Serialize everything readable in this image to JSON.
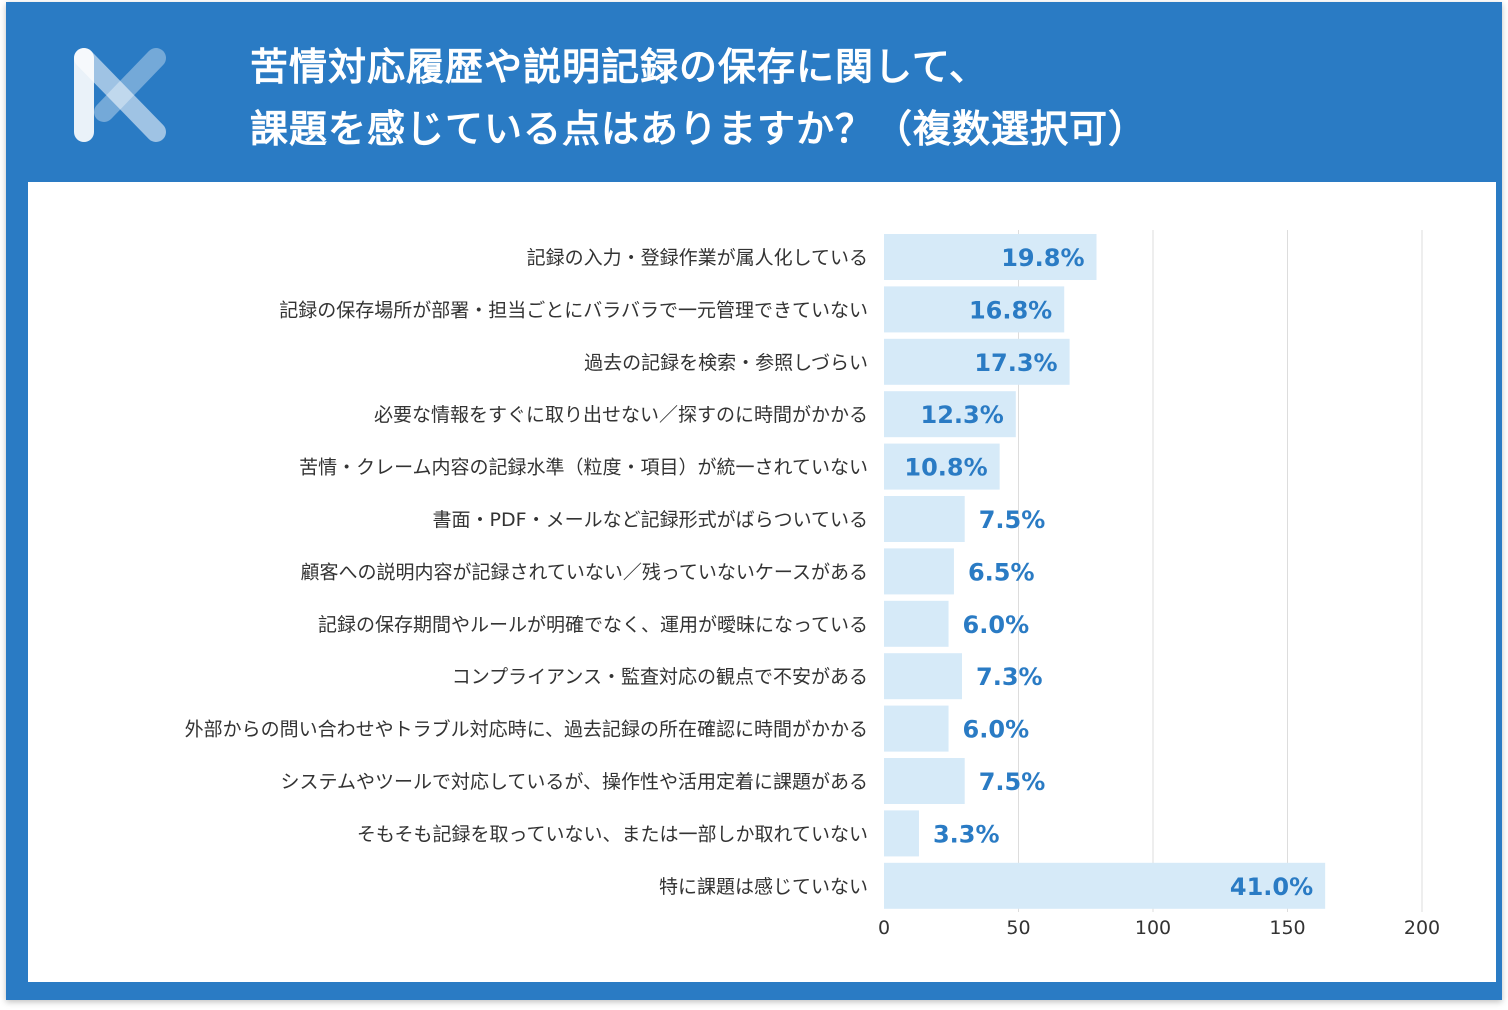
{
  "header": {
    "title_line1": "苦情対応履歴や説明記録の保存に関して、",
    "title_line2": "課題を感じている点はありますか？（複数選択可）"
  },
  "colors": {
    "frame": "#2a7bc4",
    "bar": "#d6eaf8",
    "value_text": "#2a7bc4",
    "grid": "#dddddd"
  },
  "chart_data": {
    "type": "bar",
    "orientation": "horizontal",
    "title": "苦情対応履歴や説明記録の保存に関して、課題を感じている点はありますか？（複数選択可）",
    "xlim": [
      0,
      200
    ],
    "ticks": [
      "0",
      "50",
      "100",
      "150",
      "200"
    ],
    "tick_values": [
      0,
      50,
      100,
      150,
      200
    ],
    "grid": true,
    "categories": [
      "記録の入力・登録作業が属人化している",
      "記録の保存場所が部署・担当ごとにバラバラで一元管理できていない",
      "過去の記録を検索・参照しづらい",
      "必要な情報をすぐに取り出せない／探すのに時間がかかる",
      "苦情・クレーム内容の記録水準（粒度・項目）が統一されていない",
      "書面・PDF・メールなど記録形式がばらついている",
      "顧客への説明内容が記録されていない／残っていないケースがある",
      "記録の保存期間やルールが明確でなく、運用が曖昧になっている",
      "コンプライアンス・監査対応の観点で不安がある",
      "外部からの問い合わせやトラブル対応時に、過去記録の所在確認に時間がかかる",
      "システムやツールで対応しているが、操作性や活用定着に課題がある",
      "そもそも記録を取っていない、または一部しか取れていない",
      "特に課題は感じていない"
    ],
    "values": [
      79,
      67,
      69,
      49,
      43,
      30,
      26,
      24,
      29,
      24,
      30,
      13,
      164
    ],
    "value_labels": [
      "19.8%",
      "16.8%",
      "17.3%",
      "12.3%",
      "10.8%",
      "7.5%",
      "6.5%",
      "6.0%",
      "7.3%",
      "6.0%",
      "7.5%",
      "3.3%",
      "41.0%"
    ]
  }
}
